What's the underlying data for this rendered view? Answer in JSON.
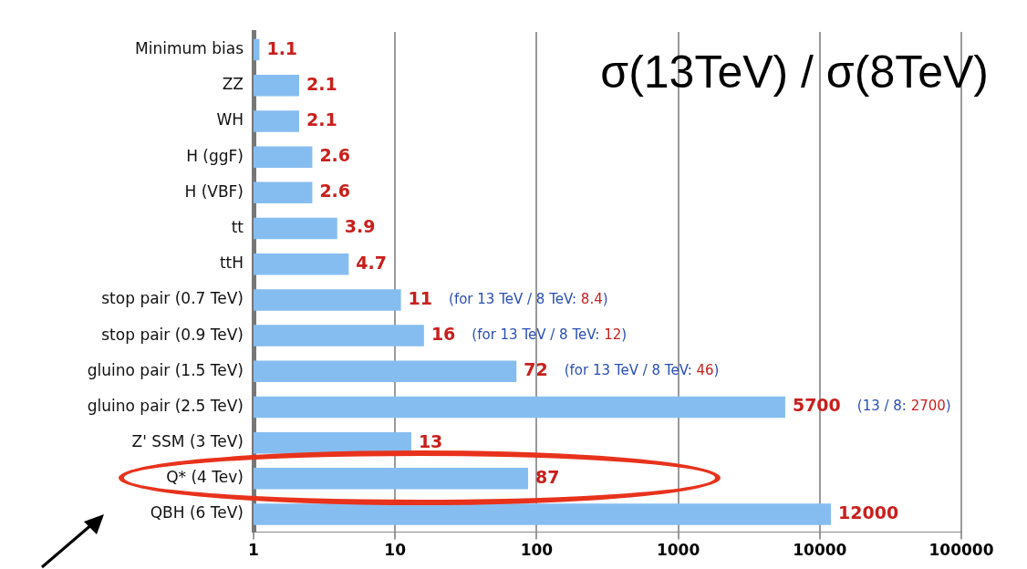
{
  "chart_data": {
    "type": "bar",
    "orientation": "horizontal",
    "title": "σ(13TeV) / σ(8TeV)",
    "categories": [
      "Minimum bias",
      "ZZ",
      "WH",
      "H (ggF)",
      "H (VBF)",
      "tt",
      "ttH",
      "stop pair (0.7 TeV)",
      "stop pair (0.9 TeV)",
      "gluino pair (1.5 TeV)",
      "gluino pair (2.5 TeV)",
      "Z' SSM (3 TeV)",
      "Q* (4 Tev)",
      "QBH (6 TeV)"
    ],
    "values": [
      1.1,
      2.1,
      2.1,
      2.6,
      2.6,
      3.9,
      4.7,
      11,
      16,
      72,
      5700,
      13,
      87,
      12000
    ],
    "color": "#86bdf0",
    "log": "x",
    "xlim": [
      1,
      100000
    ],
    "xticks": [
      1,
      10,
      100,
      1000,
      10000,
      100000
    ],
    "grid": "x",
    "legend": false,
    "data_labels": true,
    "annotations": [
      "(for 13 TeV / 8 TeV: 8.4)",
      "(for 13 TeV / 8 TeV: 12)",
      "(for 13 TeV / 8 TeV: 46)",
      "(13 / 8: 2700)"
    ]
  }
}
